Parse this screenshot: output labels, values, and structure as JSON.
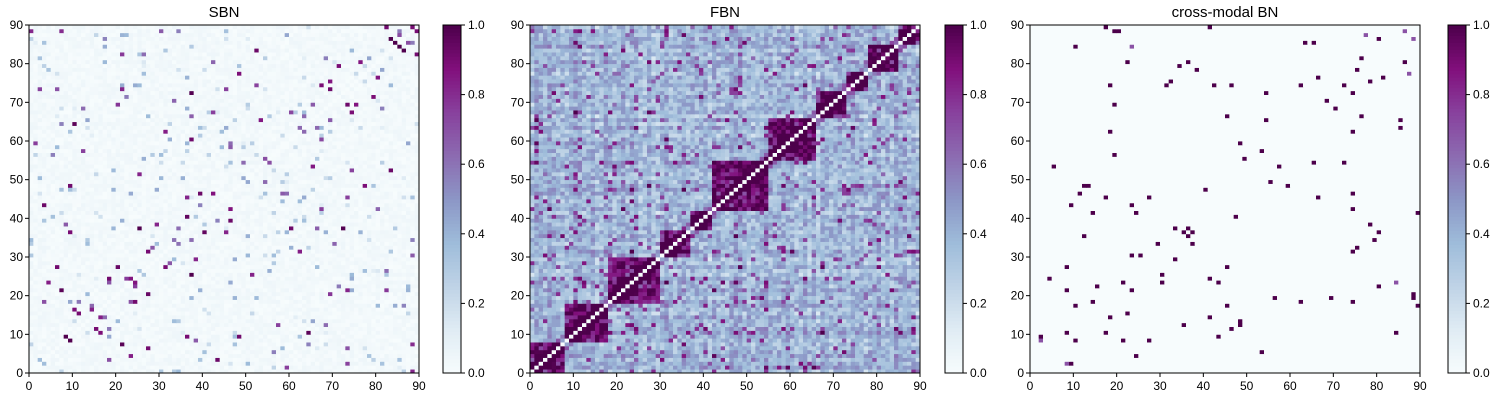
{
  "chart_data": [
    {
      "type": "heatmap",
      "title": "SBN",
      "xlim": [
        0,
        90
      ],
      "ylim": [
        0,
        90
      ],
      "x_ticks": [
        0,
        10,
        20,
        30,
        40,
        50,
        60,
        70,
        80,
        90
      ],
      "y_ticks": [
        0,
        10,
        20,
        30,
        40,
        50,
        60,
        70,
        80,
        90
      ],
      "grid_size": 90,
      "colorbar": {
        "min": 0.0,
        "max": 1.0,
        "ticks": [
          "0.0",
          "0.2",
          "0.4",
          "0.6",
          "0.8",
          "1.0"
        ]
      },
      "colormap": [
        "#f7fcfd",
        "#e0ecf4",
        "#bfd3e6",
        "#9ebcda",
        "#8c96c6",
        "#8c6bb1",
        "#88419d",
        "#810f7c",
        "#4d004b"
      ],
      "pattern": "sparse",
      "description_of_values": "Sparse symmetric connectivity matrix, mostly near 0 with scattered strong (~1.0) entries"
    },
    {
      "type": "heatmap",
      "title": "FBN",
      "xlim": [
        0,
        90
      ],
      "ylim": [
        0,
        90
      ],
      "x_ticks": [
        0,
        10,
        20,
        30,
        40,
        50,
        60,
        70,
        80,
        90
      ],
      "y_ticks": [
        0,
        10,
        20,
        30,
        40,
        50,
        60,
        70,
        80,
        90
      ],
      "grid_size": 90,
      "colorbar": {
        "min": 0.0,
        "max": 1.0,
        "ticks": [
          "0.0",
          "0.2",
          "0.4",
          "0.6",
          "0.8",
          "1.0"
        ]
      },
      "colormap": [
        "#f7fcfd",
        "#e0ecf4",
        "#bfd3e6",
        "#9ebcda",
        "#8c96c6",
        "#8c6bb1",
        "#88419d",
        "#810f7c",
        "#4d004b"
      ],
      "pattern": "dense",
      "description_of_values": "Dense symmetric connectivity matrix with strong diagonal blocks"
    },
    {
      "type": "heatmap",
      "title": "cross-modal BN",
      "xlim": [
        0,
        90
      ],
      "ylim": [
        0,
        90
      ],
      "x_ticks": [
        0,
        10,
        20,
        30,
        40,
        50,
        60,
        70,
        80,
        90
      ],
      "y_ticks": [
        0,
        10,
        20,
        30,
        40,
        50,
        60,
        70,
        80,
        90
      ],
      "grid_size": 90,
      "colorbar": {
        "min": 0.0,
        "max": 1.0,
        "ticks": [
          "0.0",
          "0.2",
          "0.4",
          "0.6",
          "0.8",
          "1.0"
        ]
      },
      "colormap": [
        "#f7fcfd",
        "#e0ecf4",
        "#bfd3e6",
        "#9ebcda",
        "#8c96c6",
        "#8c6bb1",
        "#88419d",
        "#810f7c",
        "#4d004b"
      ],
      "pattern": "sparse-binary",
      "description_of_values": "Very sparse symmetric matrix with mostly 0 and scattered 1.0 entries"
    }
  ]
}
